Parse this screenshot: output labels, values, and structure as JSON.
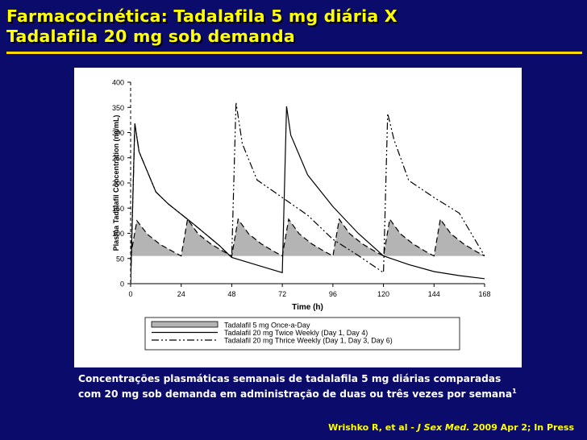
{
  "slide": {
    "title_line1": "Farmacocinética:  Tadalafila 5 mg diária  X",
    "title_line2": "Tadalafila 20 mg sob demanda",
    "caption_line1": "Concentrações plasmáticas semanais de tadalafila  5 mg  diárias comparadas",
    "caption_line2": "com  20 mg sob demanda em administração de duas ou três vezes por semana",
    "caption_superscript": "1",
    "citation_authors": "Wrishko R, et al - ",
    "citation_journal": "J Sex Med.",
    "citation_rest": " 2009 Apr 2; In Press",
    "title_color": "#ffff00",
    "background_color": "#0b0b6b"
  },
  "chart_data": {
    "type": "line",
    "title": "",
    "xlabel": "Time (h)",
    "ylabel": "Plasma Tadalafil Concentration (ng/mL)",
    "xlim": [
      0,
      168
    ],
    "ylim": [
      0,
      400
    ],
    "x_ticks": [
      0,
      24,
      48,
      72,
      96,
      120,
      144,
      168
    ],
    "y_ticks": [
      0,
      50,
      100,
      150,
      200,
      250,
      300,
      350,
      400
    ],
    "grid": false,
    "legend_position": "bottom",
    "series": [
      {
        "name": "Tadalafil 5 mg Once-a-Day",
        "style": "dashed-area",
        "color": "#b4b4b4",
        "points": [
          [
            0,
            55
          ],
          [
            3,
            125
          ],
          [
            8,
            98
          ],
          [
            14,
            78
          ],
          [
            20,
            64
          ],
          [
            24,
            55
          ],
          [
            27,
            128
          ],
          [
            32,
            99
          ],
          [
            38,
            79
          ],
          [
            44,
            64
          ],
          [
            48,
            55
          ],
          [
            51,
            128
          ],
          [
            56,
            99
          ],
          [
            62,
            79
          ],
          [
            68,
            64
          ],
          [
            72,
            55
          ],
          [
            75,
            128
          ],
          [
            80,
            99
          ],
          [
            86,
            79
          ],
          [
            92,
            64
          ],
          [
            96,
            55
          ],
          [
            99,
            128
          ],
          [
            104,
            99
          ],
          [
            110,
            79
          ],
          [
            116,
            64
          ],
          [
            120,
            55
          ],
          [
            123,
            128
          ],
          [
            128,
            99
          ],
          [
            134,
            79
          ],
          [
            140,
            64
          ],
          [
            144,
            55
          ],
          [
            147,
            128
          ],
          [
            152,
            99
          ],
          [
            158,
            79
          ],
          [
            164,
            64
          ],
          [
            168,
            55
          ]
        ]
      },
      {
        "name": "Tadalafil 20 mg Twice Weekly (Day 1, Day 4)",
        "style": "solid",
        "color": "#000000",
        "points": [
          [
            0,
            0
          ],
          [
            2,
            318
          ],
          [
            4,
            262
          ],
          [
            12,
            182
          ],
          [
            18,
            158
          ],
          [
            30,
            118
          ],
          [
            42,
            76
          ],
          [
            48,
            52
          ],
          [
            60,
            37
          ],
          [
            72,
            22
          ],
          [
            74,
            352
          ],
          [
            76,
            295
          ],
          [
            84,
            216
          ],
          [
            96,
            153
          ],
          [
            108,
            100
          ],
          [
            120,
            55
          ],
          [
            132,
            38
          ],
          [
            144,
            24
          ],
          [
            156,
            16
          ],
          [
            168,
            10
          ]
        ]
      },
      {
        "name": "Tadalafil 20 mg Thrice Weekly (Day 1, Day 3, Day 6)",
        "style": "dash-dot",
        "color": "#000000",
        "points": [
          [
            0,
            0
          ],
          [
            2,
            318
          ],
          [
            4,
            262
          ],
          [
            12,
            182
          ],
          [
            18,
            158
          ],
          [
            30,
            118
          ],
          [
            42,
            76
          ],
          [
            48,
            52
          ],
          [
            50,
            360
          ],
          [
            53,
            278
          ],
          [
            60,
            206
          ],
          [
            72,
            171
          ],
          [
            84,
            136
          ],
          [
            96,
            88
          ],
          [
            108,
            56
          ],
          [
            120,
            22
          ],
          [
            122,
            338
          ],
          [
            125,
            286
          ],
          [
            132,
            205
          ],
          [
            144,
            171
          ],
          [
            156,
            140
          ],
          [
            168,
            55
          ]
        ]
      }
    ]
  }
}
